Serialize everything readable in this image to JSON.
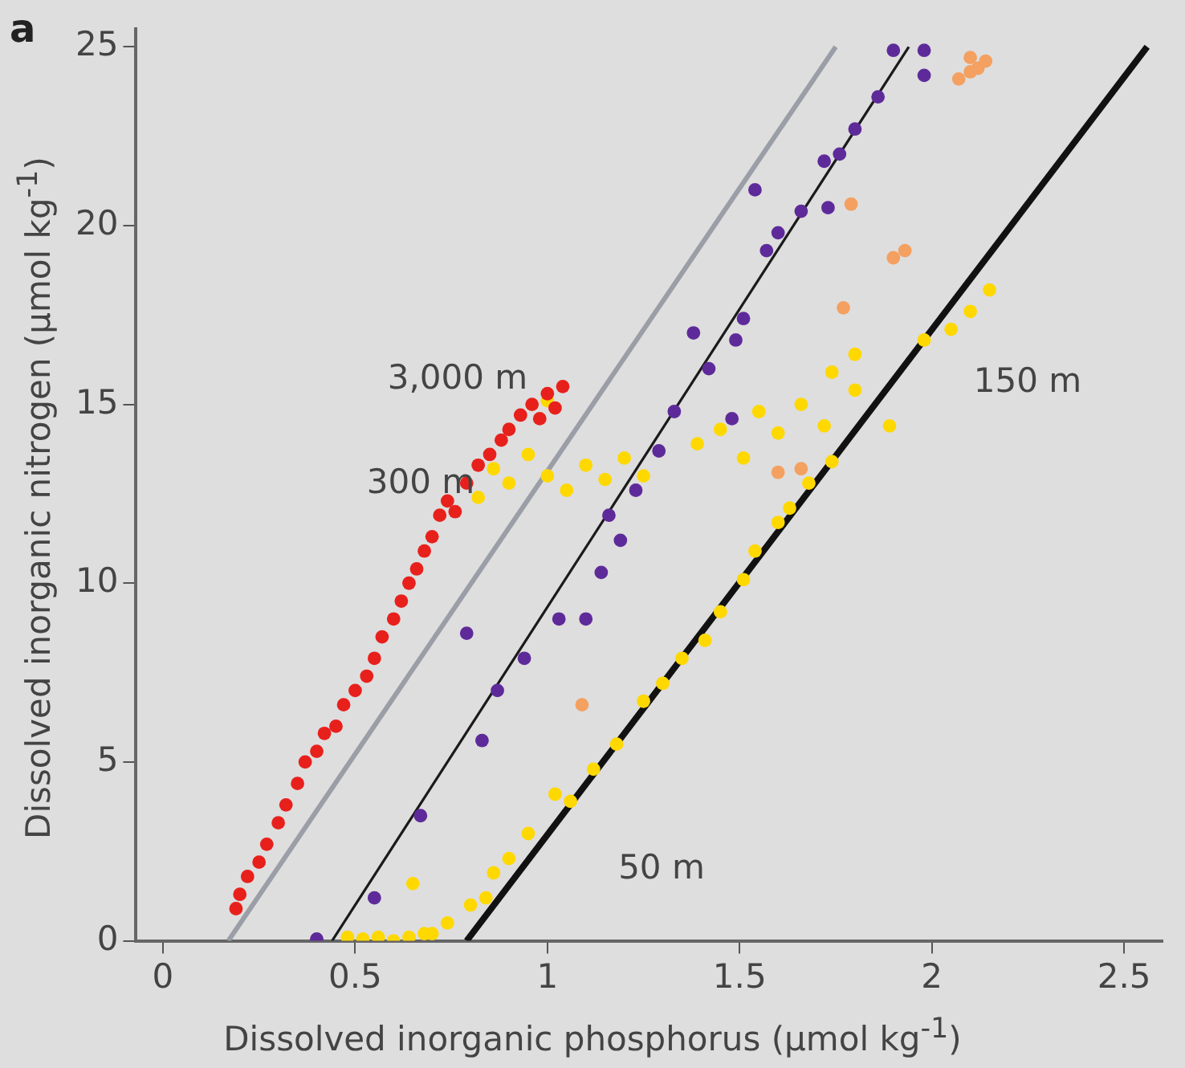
{
  "chart_data": {
    "type": "scatter",
    "xlabel": "Dissolved inorganic phosphorus (µmol kg$^{-1}$)",
    "ylabel": "Dissolved inorganic nitrogen (µmol kg$^{-1}$)",
    "xlim": [
      -0.07,
      2.6
    ],
    "xticks": [
      0,
      0.5,
      1,
      1.5,
      2,
      2.5
    ],
    "ylim": [
      0,
      25.5
    ],
    "yticks": [
      0,
      5,
      10,
      15,
      20,
      25
    ],
    "grid": false,
    "legend": false,
    "marker": "circle",
    "annotations": [
      "a",
      "3,000 m",
      "300 m",
      "150 m",
      "50 m"
    ],
    "series": [
      {
        "type": "line",
        "color": "#9a9ea6",
        "x": [
          0.17,
          1.75
        ],
        "values": [
          0,
          25
        ],
        "marker": "none"
      },
      {
        "type": "line",
        "color": "#1a1a1a",
        "x": [
          0.44,
          1.94
        ],
        "values": [
          0,
          25
        ],
        "marker": "none"
      },
      {
        "type": "line",
        "color": "#111111",
        "x": [
          0.79,
          2.56
        ],
        "values": [
          0,
          25
        ],
        "marker": "none"
      },
      {
        "color": "#e8201c",
        "x": [
          0.19,
          0.2,
          0.22,
          0.25,
          0.27,
          0.3,
          0.32,
          0.35,
          0.37,
          0.4,
          0.42,
          0.45,
          0.47,
          0.5,
          0.53,
          0.55,
          0.57,
          0.6,
          0.62,
          0.64,
          0.66,
          0.68,
          0.7,
          0.72,
          0.74,
          0.76,
          0.79,
          0.82,
          0.85,
          0.88,
          0.9,
          0.93,
          0.96,
          0.98,
          1.0,
          1.02,
          1.04
        ],
        "values": [
          0.9,
          1.3,
          1.8,
          2.2,
          2.7,
          3.3,
          3.8,
          4.4,
          5.0,
          5.3,
          5.8,
          6.0,
          6.6,
          7.0,
          7.4,
          7.9,
          8.5,
          9.0,
          9.5,
          10.0,
          10.4,
          10.9,
          11.3,
          11.9,
          12.3,
          12.0,
          12.8,
          13.3,
          13.6,
          14.0,
          14.3,
          14.7,
          15.0,
          14.6,
          15.3,
          14.9,
          15.5
        ]
      },
      {
        "color": "#5e2a9a",
        "x": [
          0.4,
          0.55,
          0.67,
          0.79,
          0.83,
          0.87,
          0.94,
          1.03,
          1.1,
          1.14,
          1.16,
          1.19,
          1.23,
          1.29,
          1.33,
          1.38,
          1.42,
          1.48,
          1.49,
          1.51,
          1.54,
          1.57,
          1.6,
          1.66,
          1.72,
          1.73,
          1.76,
          1.8,
          1.86,
          1.9,
          1.98,
          1.98
        ],
        "values": [
          0.05,
          1.2,
          3.5,
          8.6,
          5.6,
          7.0,
          7.9,
          9.0,
          9.0,
          10.3,
          11.9,
          11.2,
          12.6,
          13.7,
          14.8,
          17.0,
          16.0,
          14.6,
          16.8,
          17.4,
          21.0,
          19.3,
          19.8,
          20.4,
          21.8,
          20.5,
          22.0,
          22.7,
          23.6,
          24.9,
          24.9,
          24.2
        ]
      },
      {
        "color": "#ffd800",
        "x": [
          0.48,
          0.52,
          0.56,
          0.6,
          0.64,
          0.68,
          0.7,
          0.74,
          0.65,
          0.8,
          0.84,
          0.86,
          0.9,
          0.95,
          1.02,
          1.06,
          1.12,
          1.18,
          1.25,
          1.3,
          1.35,
          1.41,
          1.45,
          1.51,
          1.54,
          1.6,
          1.63,
          1.68,
          1.74,
          0.82,
          0.86,
          0.9,
          0.95,
          1.0,
          1.05,
          1.1,
          1.15,
          1.2,
          1.25,
          1.0,
          1.39,
          1.45,
          1.51,
          1.55,
          1.6,
          1.66,
          1.72,
          1.8,
          1.74,
          1.8,
          1.89,
          1.98,
          2.05,
          2.1,
          2.15
        ],
        "values": [
          0.1,
          0.05,
          0.1,
          0.0,
          0.1,
          0.2,
          0.2,
          0.5,
          1.6,
          1.0,
          1.2,
          1.9,
          2.3,
          3.0,
          4.1,
          3.9,
          4.8,
          5.5,
          6.7,
          7.2,
          7.9,
          8.4,
          9.2,
          10.1,
          10.9,
          11.7,
          12.1,
          12.8,
          13.4,
          12.4,
          13.2,
          12.8,
          13.6,
          13.0,
          12.6,
          13.3,
          12.9,
          13.5,
          13.0,
          15.1,
          13.9,
          14.3,
          13.5,
          14.8,
          14.2,
          15.0,
          14.4,
          15.4,
          15.9,
          16.4,
          14.4,
          16.8,
          17.1,
          17.6,
          18.2
        ]
      },
      {
        "color": "#f4a060",
        "x": [
          1.09,
          1.6,
          1.66,
          1.77,
          1.79,
          1.9,
          1.93,
          2.07,
          2.1,
          2.12,
          2.14,
          2.1
        ],
        "values": [
          6.6,
          13.1,
          13.2,
          17.7,
          20.6,
          19.1,
          19.3,
          24.1,
          24.7,
          24.4,
          24.6,
          24.3
        ]
      }
    ]
  }
}
